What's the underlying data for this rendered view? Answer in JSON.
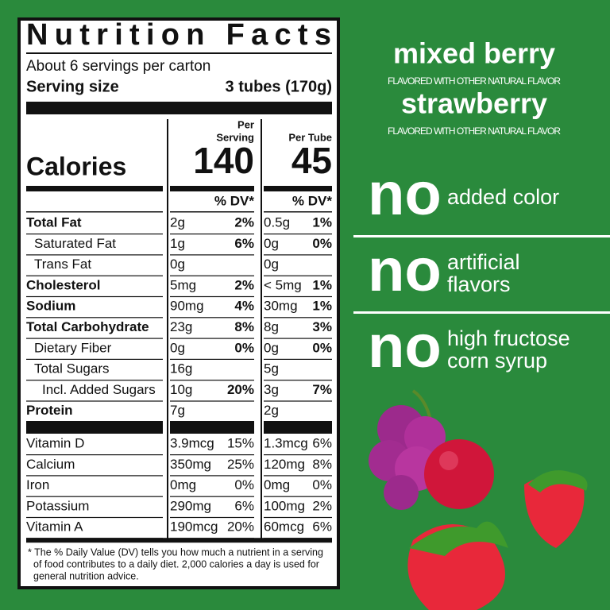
{
  "label": {
    "title": "Nutrition Facts",
    "servings": "About 6 servings per carton",
    "serving_size_label": "Serving size",
    "serving_size": "3 tubes (170g)",
    "calories_label": "Calories",
    "per_serving_label": [
      "Per",
      "Serving"
    ],
    "per_tube_label": "Per Tube",
    "calories_serving": 140,
    "calories_tube": 45,
    "dv_header": "% DV*",
    "nutrients": [
      {
        "name": "Total Fat",
        "bold": true,
        "indent": 0,
        "serving_amount": "2g",
        "serving_dv": "2%",
        "tube_amount": "0.5g",
        "tube_dv": "1%"
      },
      {
        "name": "Saturated Fat",
        "bold": false,
        "indent": 1,
        "serving_amount": "1g",
        "serving_dv": "6%",
        "tube_amount": "0g",
        "tube_dv": "0%"
      },
      {
        "name": "Trans Fat",
        "bold": false,
        "indent": 1,
        "serving_amount": "0g",
        "tube_amount": "0g"
      },
      {
        "name": "Cholesterol",
        "bold": true,
        "indent": 0,
        "serving_amount": "5mg",
        "serving_dv": "2%",
        "tube_amount": "< 5mg",
        "tube_dv": "1%"
      },
      {
        "name": "Sodium",
        "bold": true,
        "indent": 0,
        "serving_amount": "90mg",
        "serving_dv": "4%",
        "tube_amount": "30mg",
        "tube_dv": "1%"
      },
      {
        "name": "Total Carbohydrate",
        "bold": true,
        "indent": 0,
        "serving_amount": "23g",
        "serving_dv": "8%",
        "tube_amount": "8g",
        "tube_dv": "3%"
      },
      {
        "name": "Dietary Fiber",
        "bold": false,
        "indent": 1,
        "serving_amount": "0g",
        "serving_dv": "0%",
        "tube_amount": "0g",
        "tube_dv": "0%"
      },
      {
        "name": "Total Sugars",
        "bold": false,
        "indent": 1,
        "serving_amount": "16g",
        "tube_amount": "5g"
      },
      {
        "name": "Incl. Added Sugars",
        "bold": false,
        "indent": 2,
        "serving_amount": "10g",
        "serving_dv": "20%",
        "tube_amount": "3g",
        "tube_dv": "7%"
      },
      {
        "name": "Protein",
        "bold": true,
        "indent": 0,
        "serving_amount": "7g",
        "tube_amount": "2g"
      }
    ],
    "vitamins": [
      {
        "name": "Vitamin D",
        "serving_amount": "3.9mcg",
        "serving_dv": "15%",
        "tube_amount": "1.3mcg",
        "tube_dv": "6%"
      },
      {
        "name": "Calcium",
        "serving_amount": "350mg",
        "serving_dv": "25%",
        "tube_amount": "120mg",
        "tube_dv": "8%"
      },
      {
        "name": "Iron",
        "serving_amount": "0mg",
        "serving_dv": "0%",
        "tube_amount": "0mg",
        "tube_dv": "0%"
      },
      {
        "name": "Potassium",
        "serving_amount": "290mg",
        "serving_dv": "6%",
        "tube_amount": "100mg",
        "tube_dv": "2%"
      },
      {
        "name": "Vitamin A",
        "serving_amount": "190mcg",
        "serving_dv": "20%",
        "tube_amount": "60mcg",
        "tube_dv": "6%"
      }
    ],
    "footnote": [
      "* The % Daily Value (DV) tells you how much a nutrient in a serving",
      "of food contributes to a daily diet. 2,000 calories a day is used for",
      "general nutrition advice."
    ]
  },
  "flavors": [
    {
      "name": "mixed berry",
      "note": "FLAVORED WITH OTHER NATURAL FLAVOR"
    },
    {
      "name": "strawberry",
      "note": "FLAVORED WITH OTHER NATURAL FLAVOR"
    }
  ],
  "claims": [
    {
      "word": "no",
      "text": [
        "added color"
      ]
    },
    {
      "word": "no",
      "text": [
        "artificial",
        "flavors"
      ]
    },
    {
      "word": "no",
      "text": [
        "high fructose",
        "corn syrup"
      ]
    }
  ]
}
